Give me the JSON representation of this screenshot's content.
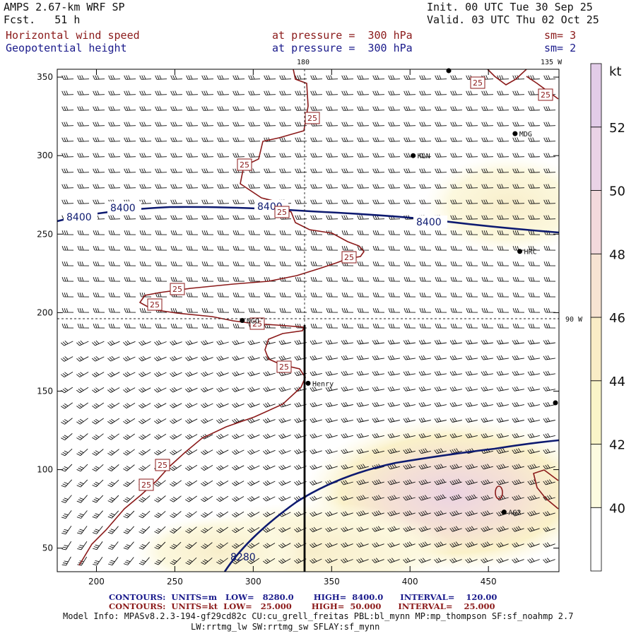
{
  "header": {
    "model": "AMPS 2.67-km WRF SP",
    "fcst": "Fcst.   51 h",
    "init": "Init. 00 UTC Tue 30 Sep 25",
    "valid": "Valid. 03 UTC Thu 02 Oct 25",
    "field1_name": "Horizontal wind speed",
    "field1_level": "at pressure =  300 hPa",
    "field1_sm": "sm= 3",
    "field2_name": "Geopotential height",
    "field2_level": "at pressure =  300 hPa",
    "field2_sm": "sm= 2"
  },
  "map_labels": {
    "lon_180": "180",
    "lon_135w": "135 W",
    "lon_90w": "90 W"
  },
  "stations": [
    {
      "name": "MDG",
      "x": 467,
      "y": 314
    },
    {
      "name": "KLN",
      "x": 402,
      "y": 300
    },
    {
      "name": "HRC",
      "x": 470,
      "y": 239
    },
    {
      "name": "NGO",
      "x": 293,
      "y": 195
    },
    {
      "name": "Henry",
      "x": 335,
      "y": 155
    },
    {
      "name": "AG2",
      "x": 460,
      "y": 73
    }
  ],
  "footer": {
    "line1": "CONTOURS:  UNITS=m   LOW=   8280.0       HIGH=  8400.0      INTERVAL=    120.00",
    "line2": "CONTOURS:  UNITS=kt  LOW=   25.000       HIGH=  50.000      INTERVAL=    25.000",
    "line3": "Model Info: MPASv8.2.3-194-gf29cd82c CU:cu_grell_freitas PBL:bl_mynn MP:mp_thompson SF:sf_noahmp 2.7",
    "line4": "LW:rrtmg_lw SW:rrtmg_sw SFLAY:sf_mynn"
  },
  "colors": {
    "height_contour": "#0d1a70",
    "speed_contour": "#8b1a1a",
    "barb": "#111111",
    "cross_section": "#000000"
  },
  "chart_data": {
    "type": "heatmap",
    "title": "Horizontal wind speed / Geopotential height at 300 hPa",
    "x_ticks": [
      200,
      250,
      300,
      350,
      400,
      450
    ],
    "y_ticks": [
      50,
      100,
      150,
      200,
      250,
      300,
      350
    ],
    "xlim": [
      175,
      495
    ],
    "ylim": [
      35,
      355
    ],
    "colorbar": {
      "unit": "kt",
      "ticks": [
        40,
        42,
        44,
        46,
        48,
        50,
        52
      ],
      "range": [
        38,
        54
      ],
      "bands": [
        {
          "from": 38,
          "to": 40,
          "color": "#ffffff"
        },
        {
          "from": 40,
          "to": 42,
          "color": "#fdfbe0"
        },
        {
          "from": 42,
          "to": 44,
          "color": "#faf5c8"
        },
        {
          "from": 44,
          "to": 46,
          "color": "#f9ecc6"
        },
        {
          "from": 46,
          "to": 48,
          "color": "#f7e3d2"
        },
        {
          "from": 48,
          "to": 50,
          "color": "#f3d9dc"
        },
        {
          "from": 50,
          "to": 52,
          "color": "#ead3e6"
        },
        {
          "from": 52,
          "to": 54,
          "color": "#e2cce8"
        }
      ]
    },
    "height_contours": [
      {
        "level": 8400,
        "labels": [
          "8400",
          "8400",
          "8400",
          "8400"
        ]
      },
      {
        "level": 8280,
        "labels": [
          "8280"
        ]
      }
    ],
    "speed_contours": [
      {
        "level": 25,
        "labels": [
          "25",
          "25",
          "25",
          "25",
          "25",
          "25",
          "25",
          "25",
          "25",
          "25",
          "25",
          "25"
        ]
      }
    ],
    "cross_section_x": 335,
    "cross_section_y": [
      35,
      195
    ]
  }
}
